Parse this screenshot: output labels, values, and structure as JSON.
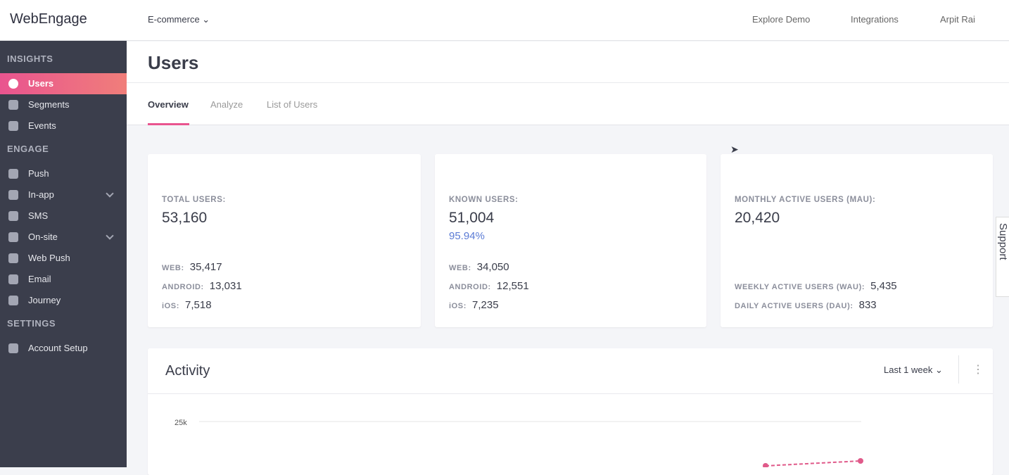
{
  "header": {
    "logo": "WebEngage",
    "project": "E-commerce",
    "menu": [
      "Explore Demo",
      "Integrations",
      "Arpit Rai"
    ]
  },
  "sidebar": {
    "sections": [
      {
        "title": "INSIGHTS",
        "items": [
          "Users",
          "Segments",
          "Events"
        ]
      },
      {
        "title": "ENGAGE",
        "items": [
          "Push",
          "In-app",
          "SMS",
          "On-site",
          "Web Push",
          "Email",
          "Journey"
        ]
      },
      {
        "title": "SETTINGS",
        "items": [
          "Account Setup"
        ]
      }
    ]
  },
  "page": {
    "title": "Users",
    "tabs": [
      "Overview",
      "Analyze",
      "List of Users"
    ]
  },
  "cards": [
    {
      "label": "TOTAL USERS:",
      "value": "53,160",
      "rows": [
        {
          "label": "WEB:",
          "value": "35,417"
        },
        {
          "label": "ANDROID:",
          "value": "13,031"
        },
        {
          "label": "iOS:",
          "value": "7,518"
        }
      ]
    },
    {
      "label": "KNOWN USERS:",
      "value": "51,004",
      "percent": "95.94%",
      "rows": [
        {
          "label": "WEB:",
          "value": "34,050"
        },
        {
          "label": "ANDROID:",
          "value": "12,551"
        },
        {
          "label": "iOS:",
          "value": "7,235"
        }
      ]
    },
    {
      "label": "MONTHLY ACTIVE USERS (MAU):",
      "value": "20,420",
      "rows": [
        {
          "label": "WEEKLY ACTIVE USERS (WAU):",
          "value": "5,435"
        },
        {
          "label": "DAILY ACTIVE USERS (DAU):",
          "value": "833"
        }
      ]
    }
  ],
  "activity": {
    "title": "Activity",
    "range": "Last 1 week",
    "y_tick": "25k"
  },
  "support": "Support"
}
